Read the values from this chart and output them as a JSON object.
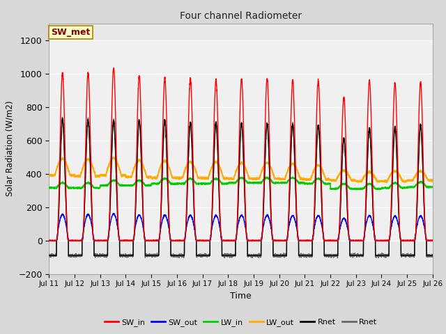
{
  "title": "Four channel Radiometer",
  "xlabel": "Time",
  "ylabel": "Solar Radiation (W/m2)",
  "ylim": [
    -200,
    1300
  ],
  "yticks": [
    -200,
    0,
    200,
    400,
    600,
    800,
    1000,
    1200
  ],
  "n_days": 15,
  "pts_per_day": 288,
  "fig_bg_color": "#d8d8d8",
  "plot_bg_color": "#e8e8e8",
  "inner_bg_color": "#f0f0f0",
  "annotation_text": "SW_met",
  "annotation_bg": "#ffffc8",
  "annotation_border": "#b08000",
  "series": {
    "SW_in": {
      "color": "#ff0000",
      "lw": 1.0
    },
    "SW_out": {
      "color": "#0000ff",
      "lw": 1.0
    },
    "LW_in": {
      "color": "#00cc00",
      "lw": 1.2
    },
    "LW_out": {
      "color": "#ffaa00",
      "lw": 1.2
    },
    "Rnet1": {
      "color": "#000000",
      "lw": 1.0
    },
    "Rnet2": {
      "color": "#666666",
      "lw": 1.0
    }
  },
  "legend_entries": [
    {
      "label": "SW_in",
      "color": "#ff0000"
    },
    {
      "label": "SW_out",
      "color": "#0000ff"
    },
    {
      "label": "LW_in",
      "color": "#00cc00"
    },
    {
      "label": "LW_out",
      "color": "#ffaa00"
    },
    {
      "label": "Rnet",
      "color": "#000000"
    },
    {
      "label": "Rnet",
      "color": "#666666"
    }
  ],
  "sw_in_peaks": [
    1005,
    1005,
    1030,
    985,
    970,
    970,
    960,
    970,
    970,
    960,
    955,
    855,
    960,
    940,
    950
  ],
  "rnet_peaks": [
    725,
    720,
    715,
    720,
    720,
    705,
    705,
    700,
    700,
    695,
    690,
    610,
    670,
    680,
    690
  ],
  "lw_in_base": [
    315,
    315,
    330,
    330,
    340,
    340,
    340,
    345,
    345,
    345,
    340,
    310,
    310,
    315,
    320
  ],
  "lw_out_base": [
    390,
    385,
    390,
    380,
    375,
    375,
    372,
    370,
    370,
    368,
    365,
    360,
    355,
    355,
    360
  ],
  "lw_out_peaks": [
    490,
    485,
    495,
    480,
    475,
    470,
    470,
    465,
    465,
    460,
    450,
    420,
    410,
    415,
    415
  ]
}
